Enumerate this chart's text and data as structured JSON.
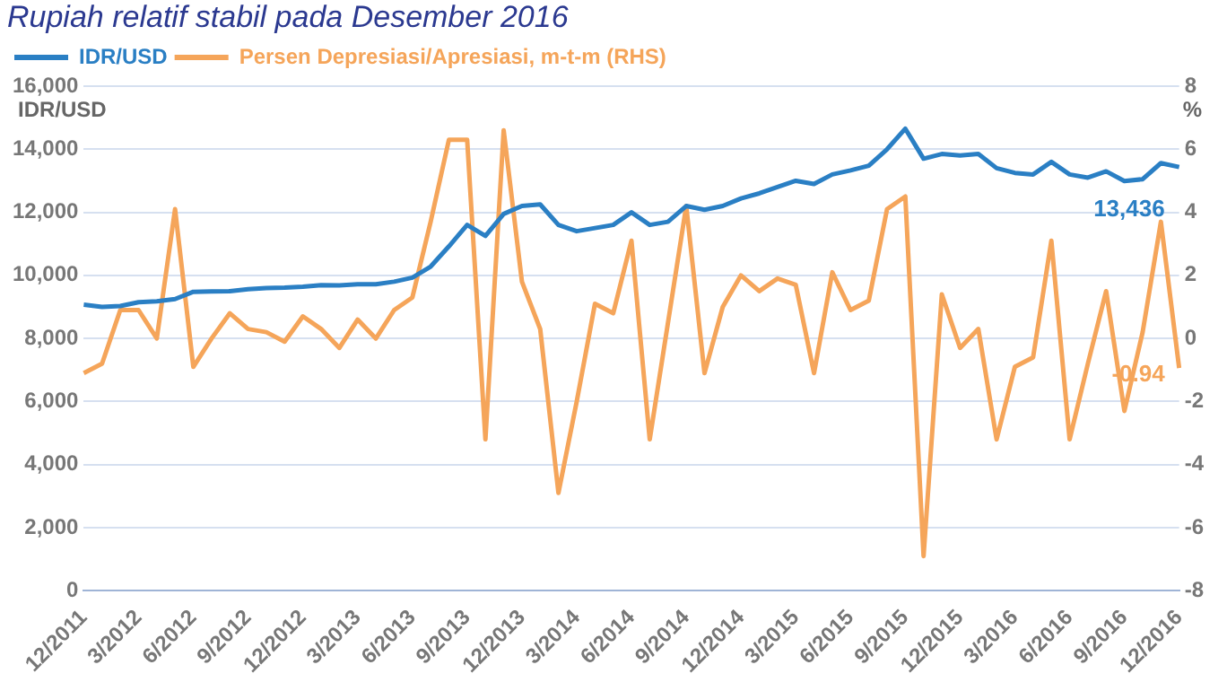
{
  "chart_data": {
    "type": "line",
    "title": "Rupiah relatif stabil pada Desember 2016",
    "ylabel": "IDR/USD",
    "y2label": "%",
    "categories": [
      "12/2011",
      null,
      null,
      "3/2012",
      null,
      null,
      "6/2012",
      null,
      null,
      "9/2012",
      null,
      null,
      "12/2012",
      null,
      null,
      "3/2013",
      null,
      null,
      "6/2013",
      null,
      null,
      "9/2013",
      null,
      null,
      "12/2013",
      null,
      null,
      "3/2014",
      null,
      null,
      "6/2014",
      null,
      null,
      "9/2014",
      null,
      null,
      "12/2014",
      null,
      null,
      "3/2015",
      null,
      null,
      "6/2015",
      null,
      null,
      "9/2015",
      null,
      null,
      "12/2015",
      null,
      null,
      "3/2016",
      null,
      null,
      "6/2016",
      null,
      null,
      "9/2016",
      null,
      null,
      "12/2016"
    ],
    "series": [
      {
        "name": "IDR/USD",
        "color": "#2a7fc4",
        "values": [
          9070,
          9000,
          9030,
          9150,
          9180,
          9250,
          9480,
          9490,
          9500,
          9560,
          9600,
          9610,
          9640,
          9690,
          9680,
          9720,
          9720,
          9800,
          9930,
          10280,
          10920,
          11600,
          11250,
          11950,
          12200,
          12250,
          11600,
          11400,
          11500,
          11600,
          12000,
          11600,
          11700,
          12200,
          12080,
          12200,
          12440,
          12600,
          12800,
          13000,
          12900,
          13200,
          13330,
          13480,
          14000,
          14650,
          13700,
          13850,
          13800,
          13850,
          13400,
          13250,
          13200,
          13600,
          13200,
          13100,
          13300,
          12990,
          13050,
          13560,
          13436
        ],
        "value_labels": [
          null,
          null,
          null,
          null,
          null,
          null,
          null,
          null,
          null,
          null,
          null,
          null,
          null,
          null,
          null,
          null,
          null,
          null,
          null,
          null,
          null,
          null,
          null,
          null,
          null,
          null,
          null,
          null,
          null,
          null,
          null,
          null,
          null,
          null,
          null,
          null,
          null,
          null,
          null,
          null,
          null,
          null,
          null,
          null,
          null,
          null,
          null,
          null,
          null,
          null,
          null,
          null,
          null,
          null,
          null,
          null,
          null,
          null,
          null,
          null,
          "13,436"
        ]
      },
      {
        "name": "Persen Depresiasi/Apresiasi, m-t-m (RHS)",
        "color": "#f5a55a",
        "axis": "y2",
        "values": [
          -1.1,
          -0.8,
          0.9,
          0.9,
          0.0,
          4.1,
          -0.9,
          0.0,
          0.8,
          0.3,
          0.2,
          -0.1,
          0.7,
          0.3,
          -0.3,
          0.6,
          0.0,
          0.9,
          1.3,
          3.7,
          6.3,
          6.3,
          -3.2,
          6.6,
          1.8,
          0.3,
          -4.9,
          -2.0,
          1.1,
          0.8,
          3.1,
          -3.2,
          0.5,
          4.2,
          -1.1,
          1.0,
          2.0,
          1.5,
          1.9,
          1.7,
          -1.1,
          2.1,
          0.9,
          1.2,
          4.1,
          4.5,
          -6.9,
          1.4,
          -0.3,
          0.3,
          -3.2,
          -0.9,
          -0.6,
          3.1,
          -3.2,
          -0.8,
          1.5,
          -2.3,
          0.2,
          3.7,
          -0.94
        ],
        "value_labels": [
          null,
          null,
          null,
          null,
          null,
          null,
          null,
          null,
          null,
          null,
          null,
          null,
          null,
          null,
          null,
          null,
          null,
          null,
          null,
          null,
          null,
          null,
          null,
          null,
          null,
          null,
          null,
          null,
          null,
          null,
          null,
          null,
          null,
          null,
          null,
          null,
          null,
          null,
          null,
          null,
          null,
          null,
          null,
          null,
          null,
          null,
          null,
          null,
          null,
          null,
          null,
          null,
          null,
          null,
          null,
          null,
          null,
          null,
          null,
          null,
          "-0.94"
        ]
      }
    ],
    "ylim": [
      0,
      16000
    ],
    "yticks": [
      {
        "value": 0,
        "label": "0"
      },
      {
        "value": 2000,
        "label": "2,000"
      },
      {
        "value": 4000,
        "label": "4,000"
      },
      {
        "value": 6000,
        "label": "6,000"
      },
      {
        "value": 8000,
        "label": "8,000"
      },
      {
        "value": 10000,
        "label": "10,000"
      },
      {
        "value": 12000,
        "label": "12,000"
      },
      {
        "value": 14000,
        "label": "14,000"
      },
      {
        "value": 16000,
        "label": "16,000"
      }
    ],
    "y2lim": [
      -8,
      8
    ],
    "y2ticks": [
      -8,
      -6,
      -4,
      -2,
      0,
      2,
      4,
      6,
      8
    ],
    "grid": "y",
    "legend": "top left",
    "marker": "none",
    "line_style": "solid"
  }
}
